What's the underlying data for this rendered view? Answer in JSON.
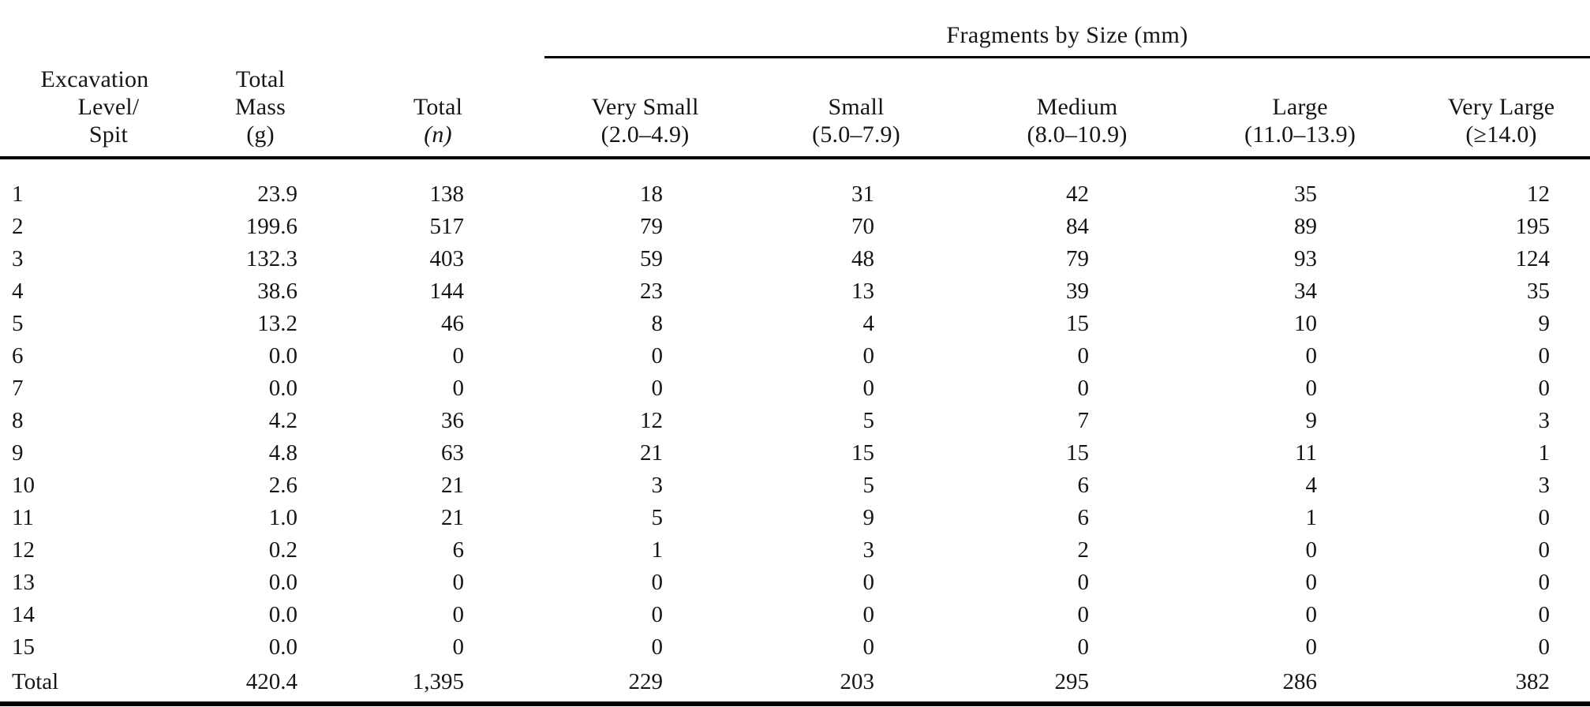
{
  "table": {
    "spanner_label": "Fragments by Size (mm)",
    "columns": [
      {
        "lines": [
          "Excavation",
          "Level/",
          "Spit"
        ]
      },
      {
        "lines": [
          "Total",
          "Mass",
          "(g)"
        ]
      },
      {
        "lines": [
          "Total",
          "(n)"
        ]
      },
      {
        "lines": [
          "Very Small",
          "(2.0–4.9)"
        ]
      },
      {
        "lines": [
          "Small",
          "(5.0–7.9)"
        ]
      },
      {
        "lines": [
          "Medium",
          "(8.0–10.9)"
        ]
      },
      {
        "lines": [
          "Large",
          "(11.0–13.9)"
        ]
      },
      {
        "lines": [
          "Very Large",
          "(≥14.0)"
        ]
      }
    ],
    "rows": [
      [
        "1",
        "23.9",
        "138",
        "18",
        "31",
        "42",
        "35",
        "12"
      ],
      [
        "2",
        "199.6",
        "517",
        "79",
        "70",
        "84",
        "89",
        "195"
      ],
      [
        "3",
        "132.3",
        "403",
        "59",
        "48",
        "79",
        "93",
        "124"
      ],
      [
        "4",
        "38.6",
        "144",
        "23",
        "13",
        "39",
        "34",
        "35"
      ],
      [
        "5",
        "13.2",
        "46",
        "8",
        "4",
        "15",
        "10",
        "9"
      ],
      [
        "6",
        "0.0",
        "0",
        "0",
        "0",
        "0",
        "0",
        "0"
      ],
      [
        "7",
        "0.0",
        "0",
        "0",
        "0",
        "0",
        "0",
        "0"
      ],
      [
        "8",
        "4.2",
        "36",
        "12",
        "5",
        "7",
        "9",
        "3"
      ],
      [
        "9",
        "4.8",
        "63",
        "21",
        "15",
        "15",
        "11",
        "1"
      ],
      [
        "10",
        "2.6",
        "21",
        "3",
        "5",
        "6",
        "4",
        "3"
      ],
      [
        "11",
        "1.0",
        "21",
        "5",
        "9",
        "6",
        "1",
        "0"
      ],
      [
        "12",
        "0.2",
        "6",
        "1",
        "3",
        "2",
        "0",
        "0"
      ],
      [
        "13",
        "0.0",
        "0",
        "0",
        "0",
        "0",
        "0",
        "0"
      ],
      [
        "14",
        "0.0",
        "0",
        "0",
        "0",
        "0",
        "0",
        "0"
      ],
      [
        "15",
        "0.0",
        "0",
        "0",
        "0",
        "0",
        "0",
        "0"
      ],
      [
        "Total",
        "420.4",
        "1,395",
        "229",
        "203",
        "295",
        "286",
        "382"
      ]
    ],
    "total_row_label": "Total"
  }
}
